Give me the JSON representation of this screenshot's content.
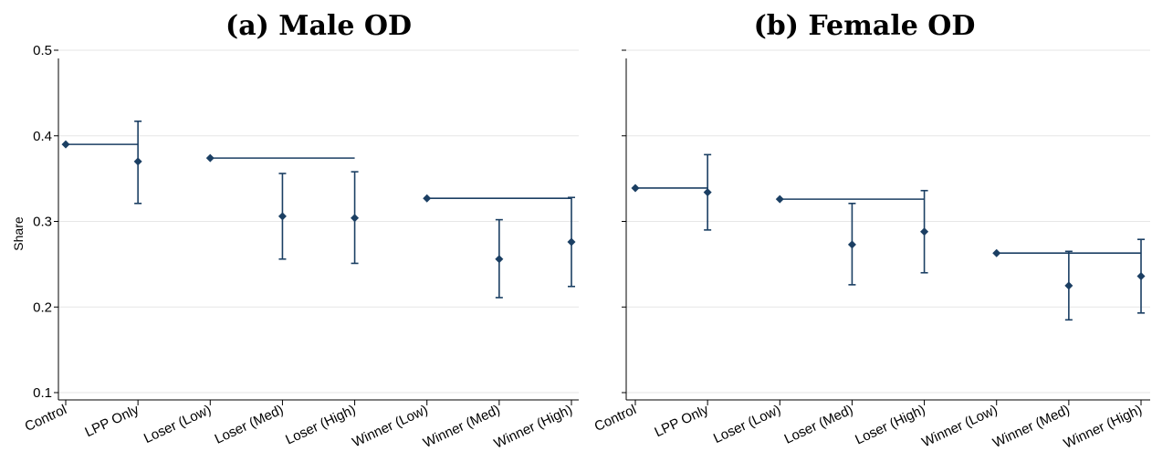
{
  "chart_data": [
    {
      "type": "scatter",
      "title": "(a) Male OD",
      "xlabel": "",
      "ylabel": "Share",
      "ylim": [
        0.1,
        0.5
      ],
      "yticks": [
        "0.1",
        "0.2",
        "0.3",
        "0.4",
        "0.5"
      ],
      "categories": [
        "Control",
        "LPP Only",
        "Loser (Low)",
        "Loser (Med)",
        "Loser (High)",
        "Winner (Low)",
        "Winner (Med)",
        "Winner (High)"
      ],
      "values": [
        0.39,
        0.37,
        0.374,
        0.306,
        0.304,
        0.327,
        0.256,
        0.276
      ],
      "ci_low": [
        null,
        0.321,
        null,
        0.256,
        0.251,
        null,
        0.211,
        0.224
      ],
      "ci_high": [
        null,
        0.417,
        null,
        0.356,
        0.358,
        null,
        0.302,
        0.328
      ],
      "reference_lines": [
        {
          "from": "Control",
          "to": "LPP Only",
          "value": 0.39
        },
        {
          "from": "Loser (Low)",
          "to": "Loser (High)",
          "value": 0.374
        },
        {
          "from": "Winner (Low)",
          "to": "Winner (High)",
          "value": 0.327
        }
      ],
      "grid": true,
      "marker_color": "#1b3f63"
    },
    {
      "type": "scatter",
      "title": "(b) Female OD",
      "xlabel": "",
      "ylabel": "",
      "ylim": [
        0.1,
        0.5
      ],
      "yticks": [],
      "categories": [
        "Control",
        "LPP Only",
        "Loser (Low)",
        "Loser (Med)",
        "Loser (High)",
        "Winner (Low)",
        "Winner (Med)",
        "Winner (High)"
      ],
      "values": [
        0.339,
        0.334,
        0.326,
        0.273,
        0.288,
        0.263,
        0.225,
        0.236
      ],
      "ci_low": [
        null,
        0.29,
        null,
        0.226,
        0.24,
        null,
        0.185,
        0.193
      ],
      "ci_high": [
        null,
        0.378,
        null,
        0.321,
        0.336,
        null,
        0.265,
        0.279
      ],
      "reference_lines": [
        {
          "from": "Control",
          "to": "LPP Only",
          "value": 0.339
        },
        {
          "from": "Loser (Low)",
          "to": "Loser (High)",
          "value": 0.326
        },
        {
          "from": "Winner (Low)",
          "to": "Winner (High)",
          "value": 0.263
        }
      ],
      "grid": true,
      "marker_color": "#1b3f63"
    }
  ]
}
